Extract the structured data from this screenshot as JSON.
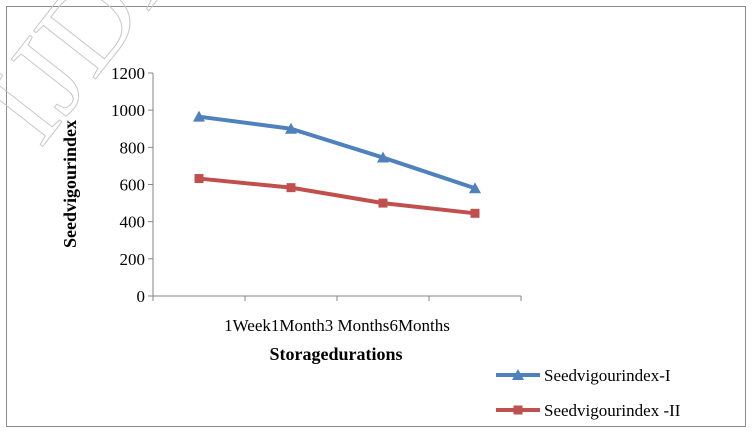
{
  "chart_data": {
    "type": "line",
    "categories": [
      "1Week",
      "1Month",
      "3 Months",
      "6Months"
    ],
    "series": [
      {
        "name": "Seedvigourindex-I",
        "values": [
          965,
          900,
          745,
          580
        ],
        "color": "#4f81bd",
        "marker": "triangle"
      },
      {
        "name": "Seedvigourindex -II",
        "values": [
          632,
          583,
          500,
          445
        ],
        "color": "#c0504d",
        "marker": "square"
      }
    ],
    "xlabel": "Storagedurations",
    "ylabel": "Seedvigourindex",
    "ylim": [
      0,
      1200
    ],
    "yticks": [
      0,
      200,
      400,
      600,
      800,
      1000,
      1200
    ],
    "grid": false,
    "legend_position": "bottom-right"
  }
}
